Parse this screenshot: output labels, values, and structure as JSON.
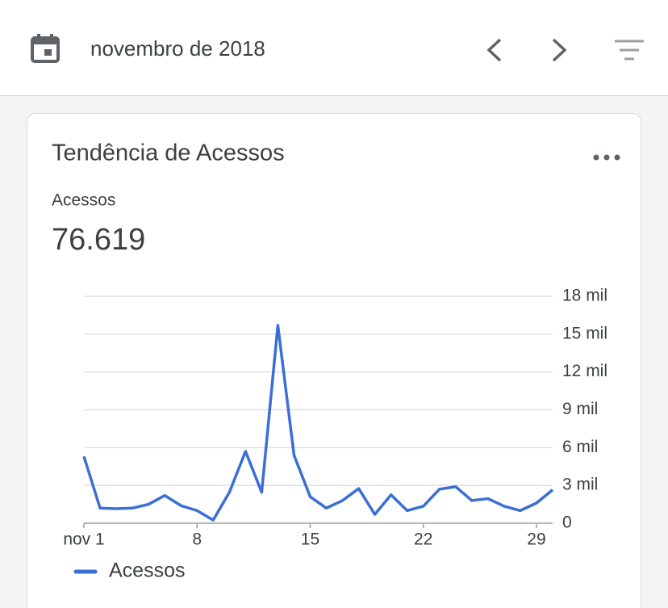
{
  "header": {
    "title": "novembro de 2018"
  },
  "card": {
    "title": "Tendência de Acessos",
    "metric_label": "Acessos",
    "metric_value": "76.619"
  },
  "chart_data": {
    "type": "line",
    "x": [
      1,
      2,
      3,
      4,
      5,
      6,
      7,
      8,
      9,
      10,
      11,
      12,
      13,
      14,
      15,
      16,
      17,
      18,
      19,
      20,
      21,
      22,
      23,
      24,
      25,
      26,
      27,
      28,
      29,
      30
    ],
    "series": [
      {
        "name": "Acessos",
        "color": "#3b6fd6",
        "values": [
          5300,
          1200,
          1150,
          1200,
          1500,
          2200,
          1400,
          1000,
          250,
          2450,
          5700,
          2450,
          15700,
          5400,
          2100,
          1200,
          1800,
          2750,
          700,
          2250,
          1000,
          1350,
          2700,
          2900,
          1800,
          1950,
          1350,
          1000,
          1600,
          2650
        ]
      }
    ],
    "xlim": [
      1,
      30
    ],
    "xticks": [
      {
        "value": 1,
        "label": "nov 1"
      },
      8,
      15,
      22,
      29
    ],
    "ylim": [
      0,
      18000
    ],
    "yticks": [
      0,
      {
        "value": 3000,
        "label": "3 mil"
      },
      {
        "value": 6000,
        "label": "6 mil"
      },
      {
        "value": 9000,
        "label": "9 mil"
      },
      {
        "value": 12000,
        "label": "12 mil"
      },
      {
        "value": 15000,
        "label": "15 mil"
      },
      {
        "value": 18000,
        "label": "18 mil"
      }
    ],
    "grid": true
  }
}
